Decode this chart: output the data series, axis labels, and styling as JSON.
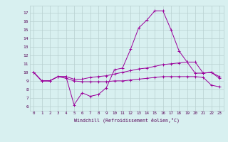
{
  "x": [
    0,
    1,
    2,
    3,
    4,
    5,
    6,
    7,
    8,
    9,
    10,
    11,
    12,
    13,
    14,
    15,
    16,
    17,
    18,
    19,
    20,
    21,
    22,
    23
  ],
  "line1": [
    10,
    9,
    9,
    9.5,
    9.5,
    6.2,
    7.6,
    7.2,
    7.4,
    8.2,
    10.3,
    10.5,
    12.7,
    15.2,
    16.1,
    17.2,
    17.2,
    15.0,
    12.5,
    11.2,
    11.2,
    9.9,
    10.0,
    9.3
  ],
  "line2": [
    10,
    9,
    9,
    9.5,
    9.5,
    9.2,
    9.2,
    9.4,
    9.5,
    9.6,
    9.8,
    10.0,
    10.2,
    10.4,
    10.5,
    10.7,
    10.9,
    11.0,
    11.1,
    11.2,
    9.9,
    9.9,
    10.0,
    9.5
  ],
  "line3": [
    10,
    9,
    9,
    9.5,
    9.3,
    9.0,
    8.9,
    8.9,
    8.9,
    8.9,
    9.0,
    9.0,
    9.1,
    9.2,
    9.3,
    9.4,
    9.5,
    9.5,
    9.5,
    9.5,
    9.5,
    9.4,
    8.5,
    8.3
  ],
  "color": "#9b009b",
  "bg_color": "#d8f0f0",
  "grid_color": "#b8d0d0",
  "xlabel": "Windchill (Refroidissement éolien,°C)",
  "ylabel_ticks": [
    6,
    7,
    8,
    9,
    10,
    11,
    12,
    13,
    14,
    15,
    16,
    17
  ],
  "xlim": [
    -0.5,
    23.5
  ],
  "ylim": [
    5.5,
    17.8
  ],
  "figsize": [
    3.2,
    2.0
  ],
  "dpi": 100
}
